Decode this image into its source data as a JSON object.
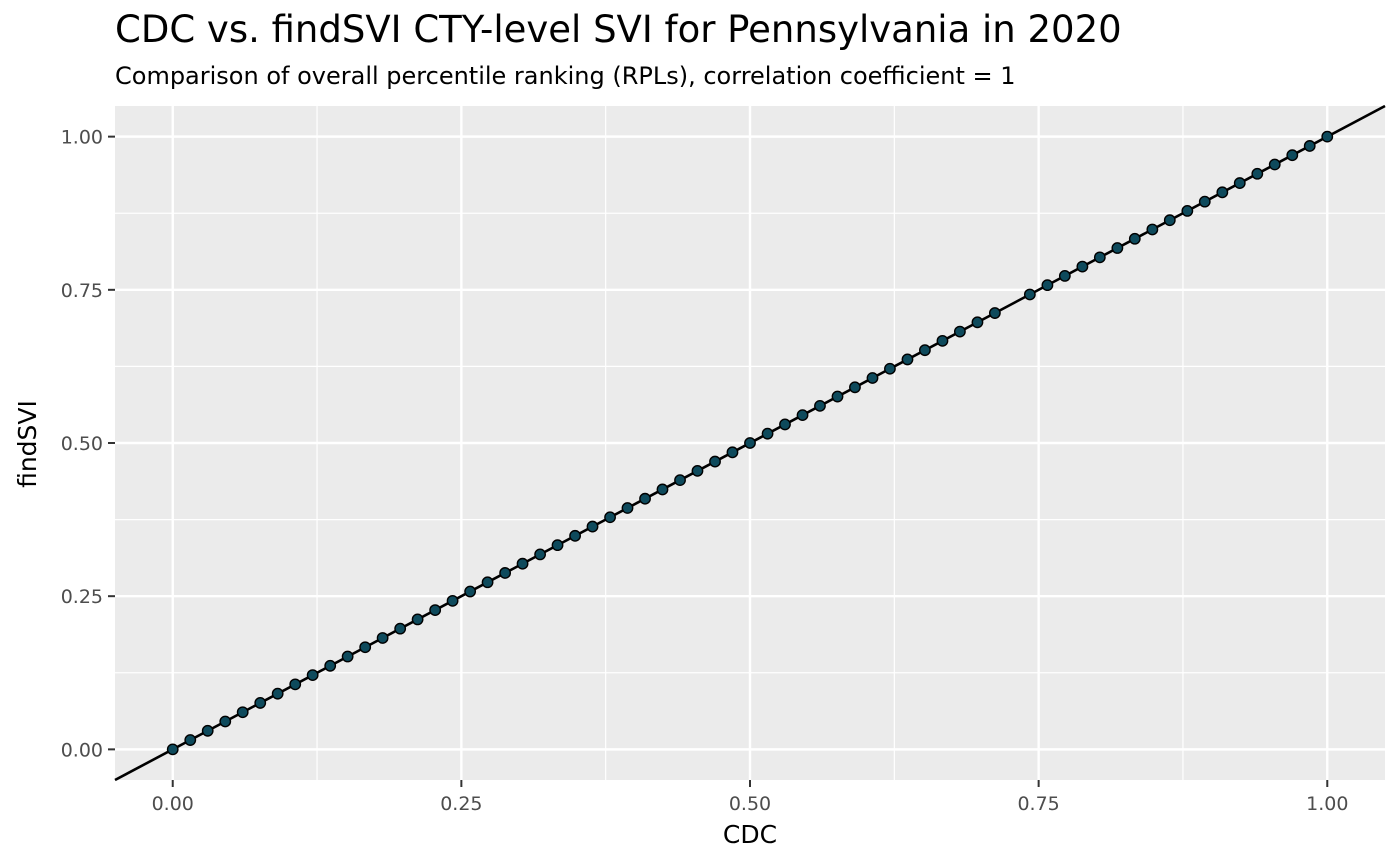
{
  "chart_data": {
    "type": "scatter",
    "title": "CDC vs. findSVI CTY-level SVI for Pennsylvania in 2020",
    "subtitle": "Comparison of overall percentile ranking (RPLs), correlation coefficient = 1",
    "xlabel": "CDC",
    "ylabel": "findSVI",
    "xlim": [
      -0.05,
      1.05
    ],
    "ylim": [
      -0.05,
      1.05
    ],
    "x_ticks": [
      "0.00",
      "0.25",
      "0.50",
      "0.75",
      "1.00"
    ],
    "y_ticks": [
      "0.00",
      "0.25",
      "0.50",
      "0.75",
      "1.00"
    ],
    "grid": true,
    "reference_line": {
      "slope": 1,
      "intercept": 0,
      "color": "#000000"
    },
    "point_color": "#0e4a5c",
    "panel_background": "#ebebeb",
    "series": [
      {
        "x": [
          0.0,
          0.0152,
          0.0303,
          0.0455,
          0.0606,
          0.0758,
          0.0909,
          0.1061,
          0.1212,
          0.1364,
          0.1515,
          0.1667,
          0.1818,
          0.197,
          0.2121,
          0.2273,
          0.2424,
          0.2576,
          0.2727,
          0.2879,
          0.303,
          0.3182,
          0.3333,
          0.3485,
          0.3636,
          0.3788,
          0.3939,
          0.4091,
          0.4242,
          0.4394,
          0.4545,
          0.4697,
          0.4848,
          0.5,
          0.5152,
          0.5303,
          0.5455,
          0.5606,
          0.5758,
          0.5909,
          0.6061,
          0.6212,
          0.6364,
          0.6515,
          0.6667,
          0.6818,
          0.697,
          0.7121,
          0.7424,
          0.7576,
          0.7727,
          0.7879,
          0.803,
          0.8182,
          0.8333,
          0.8485,
          0.8636,
          0.8788,
          0.8939,
          0.9091,
          0.9242,
          0.9394,
          0.9545,
          0.9697,
          0.9848,
          1.0
        ],
        "y": [
          0.0,
          0.0152,
          0.0303,
          0.0455,
          0.0606,
          0.0758,
          0.0909,
          0.1061,
          0.1212,
          0.1364,
          0.1515,
          0.1667,
          0.1818,
          0.197,
          0.2121,
          0.2273,
          0.2424,
          0.2576,
          0.2727,
          0.2879,
          0.303,
          0.3182,
          0.3333,
          0.3485,
          0.3636,
          0.3788,
          0.3939,
          0.4091,
          0.4242,
          0.4394,
          0.4545,
          0.4697,
          0.4848,
          0.5,
          0.5152,
          0.5303,
          0.5455,
          0.5606,
          0.5758,
          0.5909,
          0.6061,
          0.6212,
          0.6364,
          0.6515,
          0.6667,
          0.6818,
          0.697,
          0.7121,
          0.7424,
          0.7576,
          0.7727,
          0.7879,
          0.803,
          0.8182,
          0.8333,
          0.8485,
          0.8636,
          0.8788,
          0.8939,
          0.9091,
          0.9242,
          0.9394,
          0.9545,
          0.9697,
          0.9848,
          1.0
        ]
      }
    ]
  }
}
